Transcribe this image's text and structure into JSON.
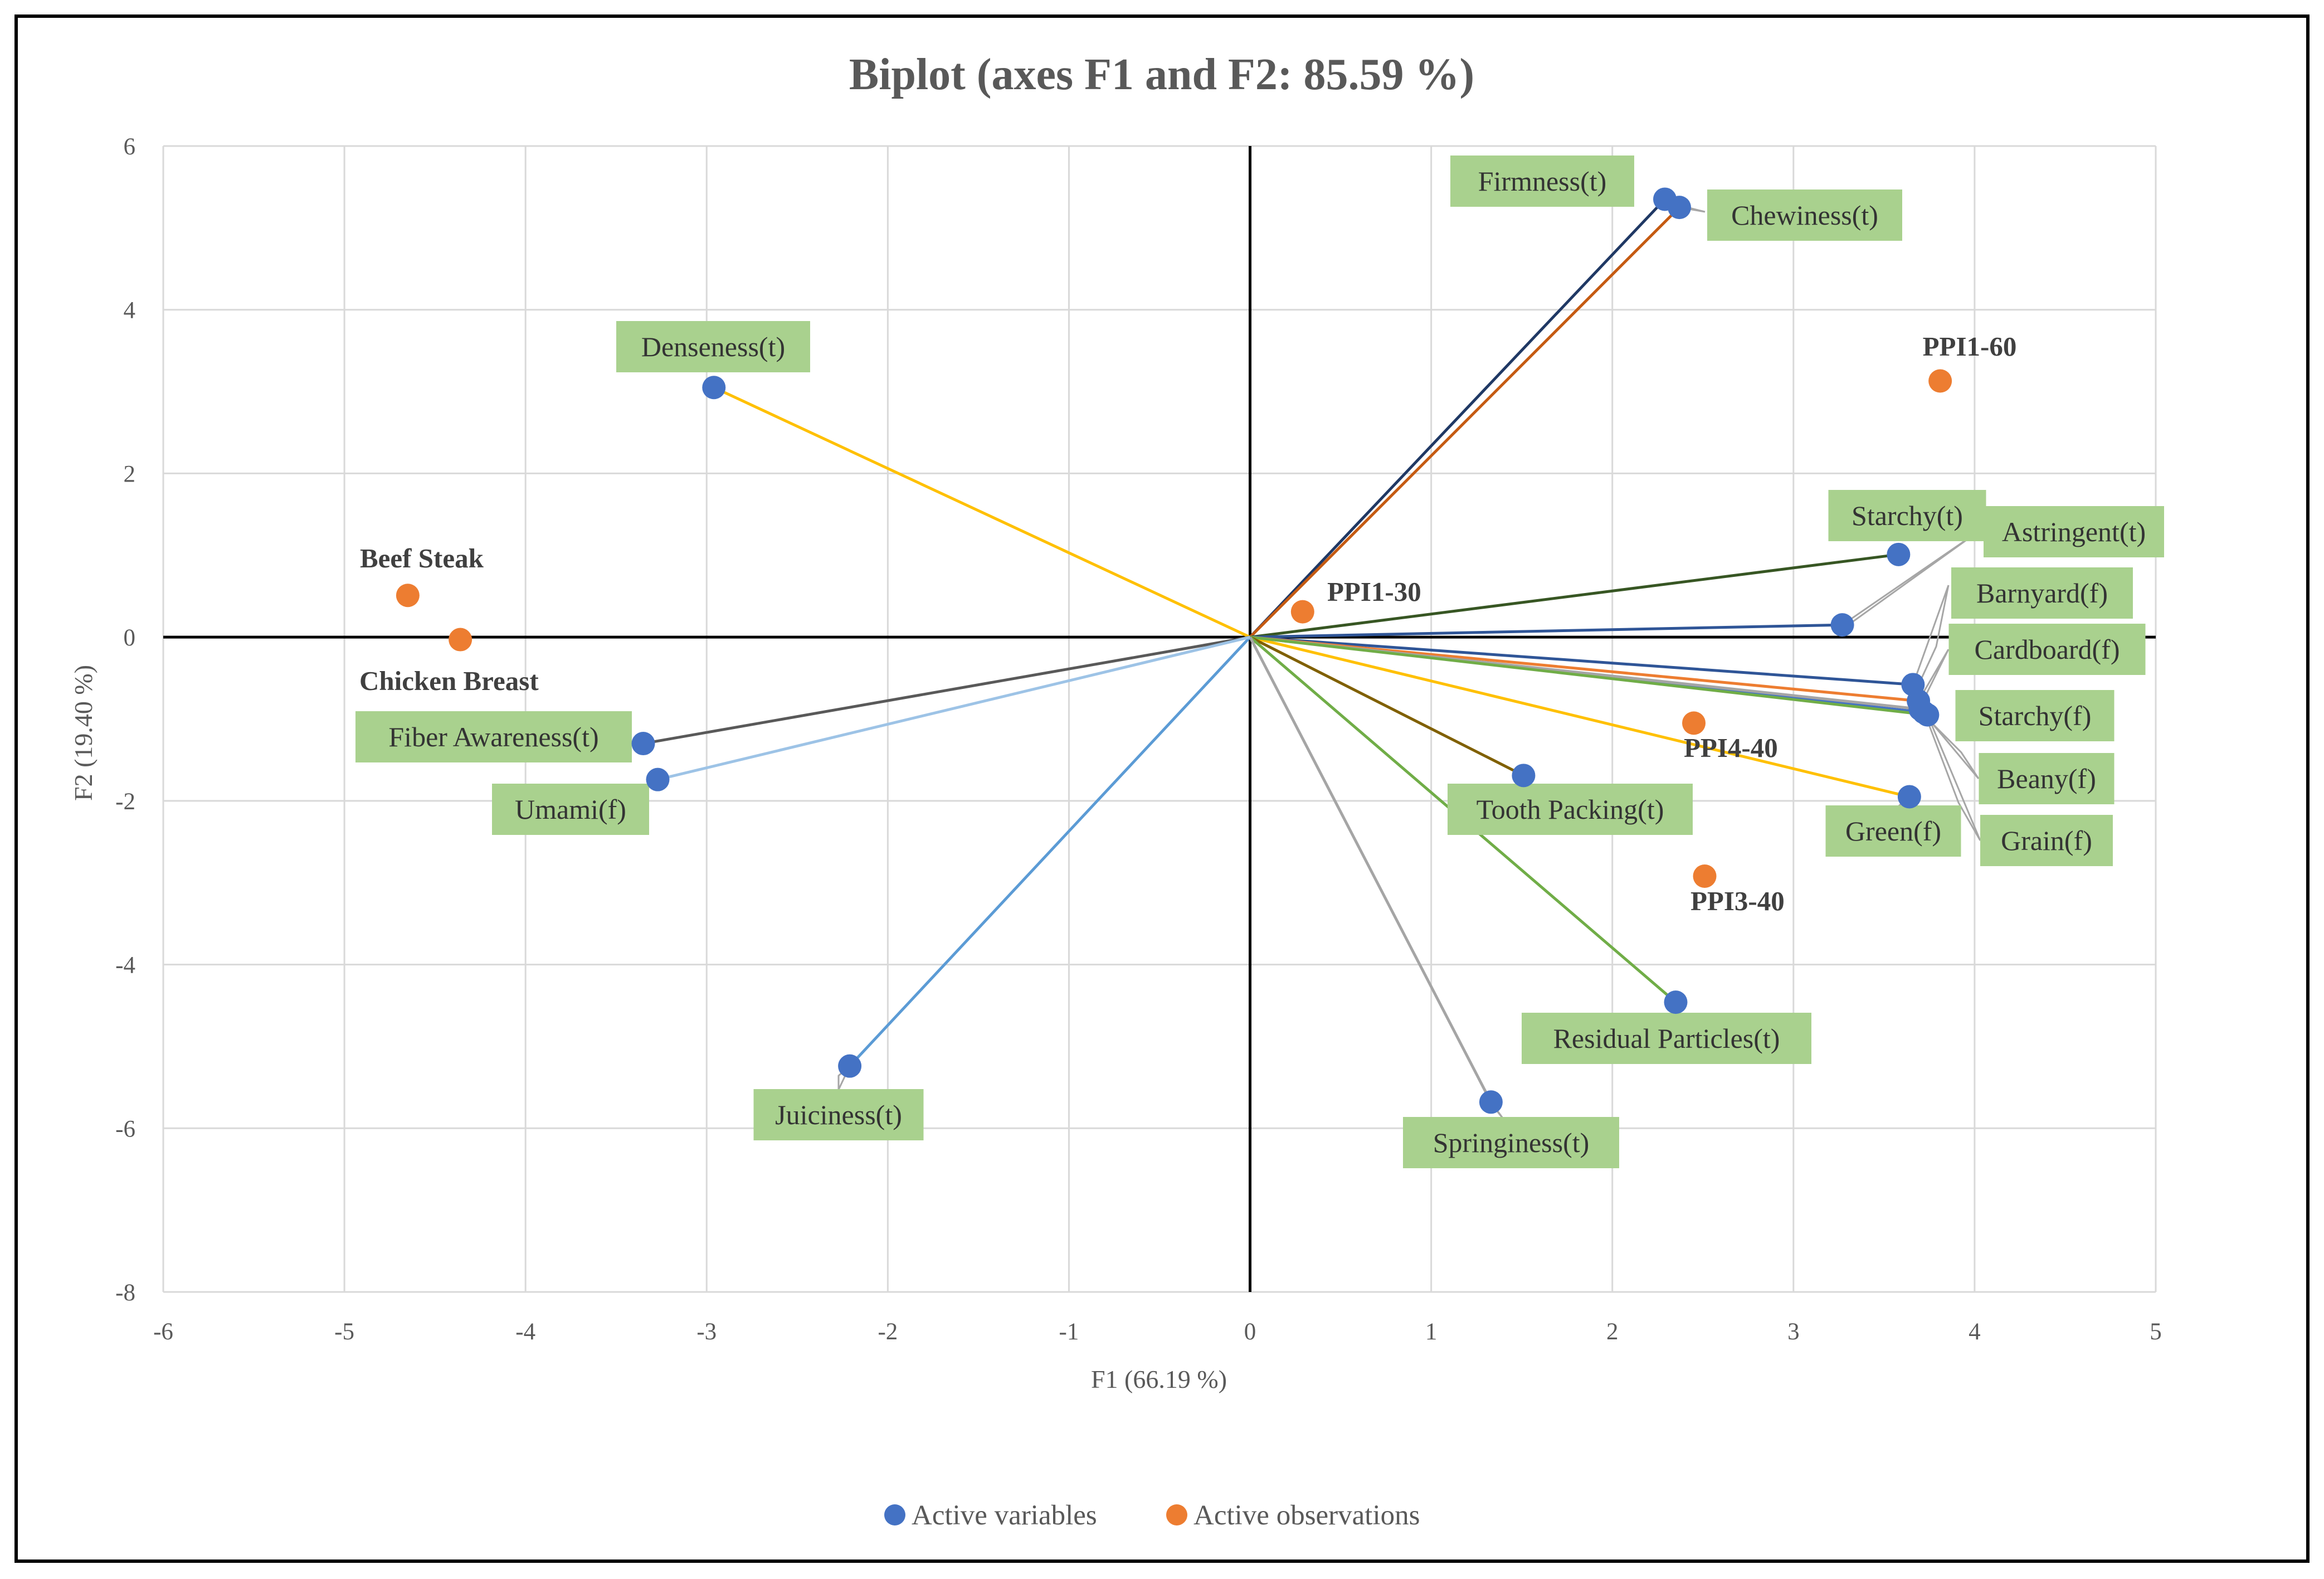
{
  "chart_data": {
    "type": "scatter",
    "subtype": "biplot",
    "title": "Biplot (axes F1 and F2: 85.59 %)",
    "xlabel": "F1 (66.19 %)",
    "ylabel": "F2 (19.40 %)",
    "xlim": [
      -6,
      5
    ],
    "ylim": [
      -8,
      6
    ],
    "xticks": [
      -6,
      -5,
      -4,
      -3,
      -2,
      -1,
      0,
      1,
      2,
      3,
      4,
      5
    ],
    "yticks": [
      -8,
      -6,
      -4,
      -2,
      0,
      2,
      4,
      6
    ],
    "grid": true,
    "legend": {
      "position": "bottom",
      "items": [
        {
          "name": "Active variables",
          "color": "#4472c4"
        },
        {
          "name": "Active observations",
          "color": "#ed7d31"
        }
      ]
    },
    "variables": [
      {
        "name": "Firmness(t)",
        "x": 2.29,
        "y": 5.35,
        "line_color": "#1f3864"
      },
      {
        "name": "Chewiness(t)",
        "x": 2.37,
        "y": 5.25,
        "line_color": "#c55a11"
      },
      {
        "name": "Denseness(t)",
        "x": -2.96,
        "y": 3.05,
        "line_color": "#ffc000"
      },
      {
        "name": "Starchy(t)",
        "x": 3.58,
        "y": 1.01,
        "line_color": "#375623"
      },
      {
        "name": "Astringent(t)",
        "x": 3.27,
        "y": 0.15,
        "line_color": "#2f5597"
      },
      {
        "name": "Barnyard(f)",
        "x": 3.66,
        "y": -0.58,
        "line_color": "#2f5597"
      },
      {
        "name": "Cardboard(f)",
        "x": 3.69,
        "y": -0.78,
        "line_color": "#ed7d31"
      },
      {
        "name": "Starchy(f)",
        "x": 3.72,
        "y": -0.92,
        "line_color": "#4472c4"
      },
      {
        "name": "Beany(f)",
        "x": 3.7,
        "y": -0.88,
        "line_color": "#a5a5a5"
      },
      {
        "name": "Green(f)",
        "x": 3.64,
        "y": -1.95,
        "line_color": "#ffc000"
      },
      {
        "name": "Grain(f)",
        "x": 3.74,
        "y": -0.95,
        "line_color": "#70ad47"
      },
      {
        "name": "Tooth Packing(t)",
        "x": 1.51,
        "y": -1.69,
        "line_color": "#806000"
      },
      {
        "name": "Residual Particles(t)",
        "x": 2.35,
        "y": -4.46,
        "line_color": "#70ad47"
      },
      {
        "name": "Springiness(t)",
        "x": 1.33,
        "y": -5.68,
        "line_color": "#a5a5a5"
      },
      {
        "name": "Juiciness(t)",
        "x": -2.21,
        "y": -5.24,
        "line_color": "#5b9bd5"
      },
      {
        "name": "Fiber Awareness(t)",
        "x": -3.35,
        "y": -1.3,
        "line_color": "#595959"
      },
      {
        "name": "Umami(f)",
        "x": -3.27,
        "y": -1.74,
        "line_color": "#9dc3e6"
      }
    ],
    "observations": [
      {
        "name": "PPI1-60",
        "x": 3.81,
        "y": 3.13
      },
      {
        "name": "PPI1-30",
        "x": 0.29,
        "y": 0.31
      },
      {
        "name": "PPI4-40",
        "x": 2.45,
        "y": -1.05
      },
      {
        "name": "PPI3-40",
        "x": 2.51,
        "y": -2.92
      },
      {
        "name": "Beef Steak",
        "x": -4.65,
        "y": 0.51
      },
      {
        "name": "Chicken Breast",
        "x": -4.36,
        "y": -0.03
      }
    ]
  }
}
